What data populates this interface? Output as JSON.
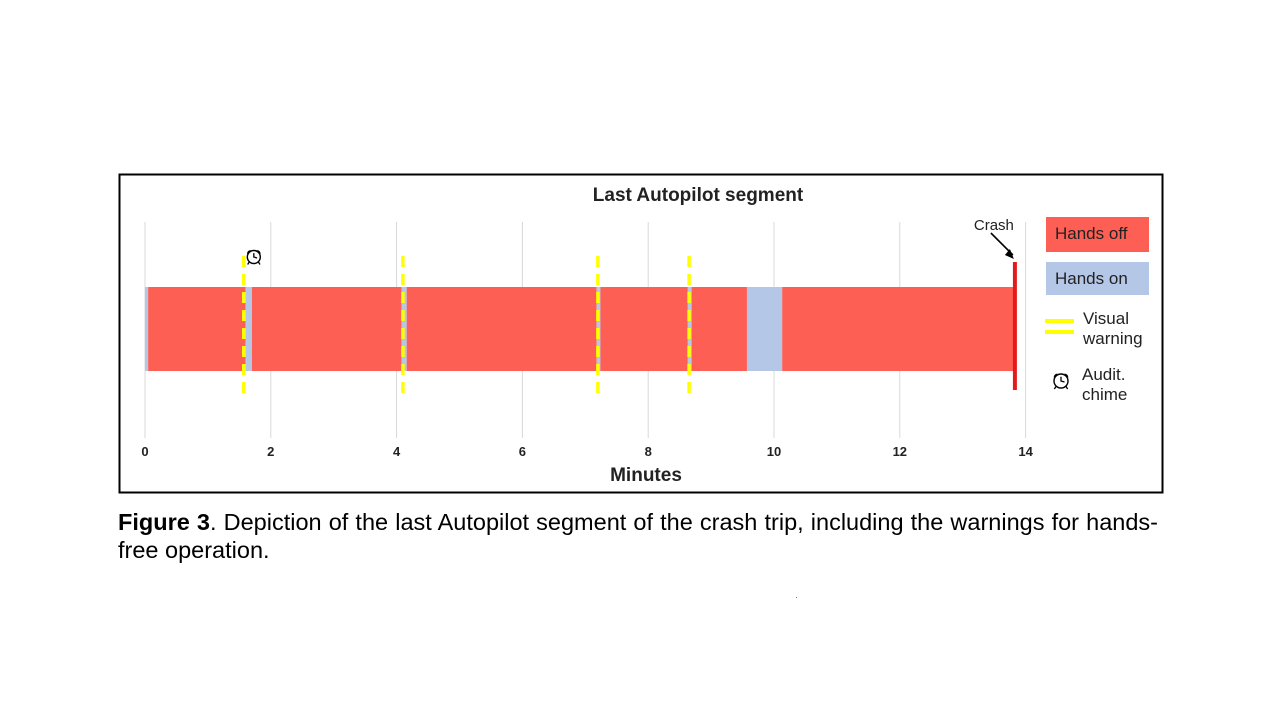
{
  "chart_data": {
    "type": "timeline",
    "title": "Last Autopilot segment",
    "xlabel": "Minutes",
    "xlim": [
      0,
      14.5
    ],
    "xticks": [
      0,
      2,
      4,
      6,
      8,
      10,
      12,
      14
    ],
    "grid": true,
    "segments": [
      {
        "state": "Hands on",
        "start": 0.0,
        "end": 0.05
      },
      {
        "state": "Hands off",
        "start": 0.05,
        "end": 1.6
      },
      {
        "state": "Hands on",
        "start": 1.6,
        "end": 1.7
      },
      {
        "state": "Hands off",
        "start": 1.7,
        "end": 4.08
      },
      {
        "state": "Hands on",
        "start": 4.08,
        "end": 4.16
      },
      {
        "state": "Hands off",
        "start": 4.16,
        "end": 7.18
      },
      {
        "state": "Hands on",
        "start": 7.18,
        "end": 7.24
      },
      {
        "state": "Hands off",
        "start": 7.24,
        "end": 8.63
      },
      {
        "state": "Hands on",
        "start": 8.63,
        "end": 8.69
      },
      {
        "state": "Hands off",
        "start": 8.69,
        "end": 9.57
      },
      {
        "state": "Hands on",
        "start": 9.57,
        "end": 10.13
      },
      {
        "state": "Hands off",
        "start": 10.13,
        "end": 13.8
      }
    ],
    "visual_warnings": [
      1.57,
      4.1,
      7.2,
      8.65
    ],
    "audible_chimes": [
      1.73
    ],
    "crash": {
      "label": "Crash",
      "time": 13.83
    },
    "legend": {
      "placement": "right",
      "items": [
        {
          "label": "Hands off",
          "kind": "box",
          "color": "#fe5f55"
        },
        {
          "label": "Hands on",
          "kind": "box",
          "color": "#b4c7e7"
        },
        {
          "label": "Visual\nwarning",
          "kind": "double-line",
          "color": "#ffff00"
        },
        {
          "label": "Audit.\nchime",
          "kind": "alarm-clock-icon"
        }
      ]
    },
    "colors": {
      "hands_off": "#fe5f55",
      "hands_on": "#b4c7e7",
      "visual_warning": "#ffff00",
      "crash": "#e31a1c"
    }
  },
  "caption": {
    "label": "Figure 3",
    "text": ". Depiction of the last Autopilot segment of the crash trip, including the warnings for hands-free operation."
  }
}
